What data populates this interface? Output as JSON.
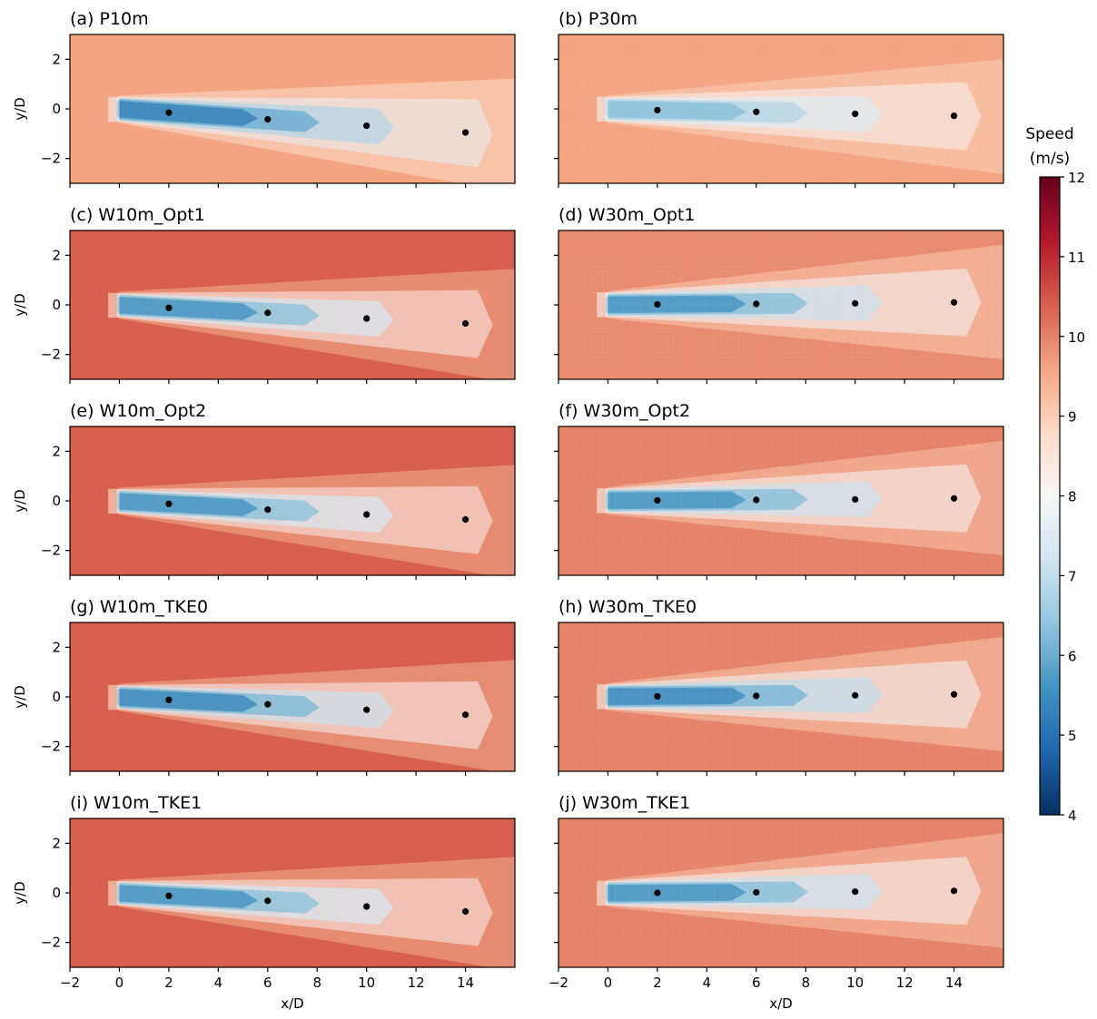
{
  "chart_data": {
    "type": "heatmap",
    "xlabel": "x/D",
    "ylabel": "y/D",
    "xlim": [
      -2,
      16
    ],
    "ylim": [
      -3,
      3
    ],
    "xticks": [
      -2,
      0,
      2,
      4,
      6,
      8,
      10,
      12,
      14
    ],
    "yticks": [
      -2,
      0,
      2
    ],
    "colorbar": {
      "title_line1": "Speed",
      "title_line2": "(m/s)",
      "min": 4,
      "max": 12,
      "ticks": [
        4,
        5,
        6,
        7,
        8,
        9,
        10,
        11,
        12
      ],
      "colormap": "RdBu_r",
      "stops": [
        "#053061",
        "#2166ac",
        "#4393c3",
        "#92c5de",
        "#d1e5f0",
        "#f7f7f7",
        "#fddbc7",
        "#f4a582",
        "#d6604d",
        "#b2182b",
        "#67001f"
      ]
    },
    "panels": [
      {
        "title": "(a) P10m",
        "background_speed": 9.6,
        "wake_min_speed": 5.3,
        "wake_deflection": "downward",
        "wake_centers": [
          {
            "x": 2,
            "y": -0.15
          },
          {
            "x": 6,
            "y": -0.42
          },
          {
            "x": 10,
            "y": -0.68
          },
          {
            "x": 14,
            "y": -0.95
          }
        ]
      },
      {
        "title": "(b) P30m",
        "background_speed": 9.6,
        "wake_min_speed": 6.3,
        "wake_deflection": "slight",
        "wake_centers": [
          {
            "x": 2,
            "y": -0.05
          },
          {
            "x": 6,
            "y": -0.12
          },
          {
            "x": 10,
            "y": -0.2
          },
          {
            "x": 14,
            "y": -0.28
          }
        ]
      },
      {
        "title": "(c) W10m_Opt1",
        "background_speed": 10.4,
        "wake_min_speed": 5.6,
        "wake_deflection": "downward",
        "wake_centers": [
          {
            "x": 2,
            "y": -0.12
          },
          {
            "x": 6,
            "y": -0.32
          },
          {
            "x": 10,
            "y": -0.55
          },
          {
            "x": 14,
            "y": -0.75
          }
        ]
      },
      {
        "title": "(d) W30m_Opt1",
        "background_speed": 9.9,
        "wake_min_speed": 5.6,
        "wake_deflection": "none",
        "wake_centers": [
          {
            "x": 2,
            "y": 0.02
          },
          {
            "x": 6,
            "y": 0.04
          },
          {
            "x": 10,
            "y": 0.06
          },
          {
            "x": 14,
            "y": 0.1
          }
        ]
      },
      {
        "title": "(e) W10m_Opt2",
        "background_speed": 10.4,
        "wake_min_speed": 5.6,
        "wake_deflection": "downward",
        "wake_centers": [
          {
            "x": 2,
            "y": -0.12
          },
          {
            "x": 6,
            "y": -0.35
          },
          {
            "x": 10,
            "y": -0.55
          },
          {
            "x": 14,
            "y": -0.75
          }
        ]
      },
      {
        "title": "(f) W30m_Opt2",
        "background_speed": 10.0,
        "wake_min_speed": 5.6,
        "wake_deflection": "none",
        "wake_centers": [
          {
            "x": 2,
            "y": 0.02
          },
          {
            "x": 6,
            "y": 0.04
          },
          {
            "x": 10,
            "y": 0.06
          },
          {
            "x": 14,
            "y": 0.1
          }
        ]
      },
      {
        "title": "(g) W10m_TKE0",
        "background_speed": 10.4,
        "wake_min_speed": 5.4,
        "wake_deflection": "downward",
        "wake_centers": [
          {
            "x": 2,
            "y": -0.12
          },
          {
            "x": 6,
            "y": -0.3
          },
          {
            "x": 10,
            "y": -0.52
          },
          {
            "x": 14,
            "y": -0.72
          }
        ]
      },
      {
        "title": "(h) W30m_TKE0",
        "background_speed": 10.0,
        "wake_min_speed": 5.4,
        "wake_deflection": "none",
        "wake_centers": [
          {
            "x": 2,
            "y": 0.02
          },
          {
            "x": 6,
            "y": 0.04
          },
          {
            "x": 10,
            "y": 0.06
          },
          {
            "x": 14,
            "y": 0.1
          }
        ]
      },
      {
        "title": "(i) W10m_TKE1",
        "background_speed": 10.4,
        "wake_min_speed": 5.6,
        "wake_deflection": "downward",
        "wake_centers": [
          {
            "x": 2,
            "y": -0.12
          },
          {
            "x": 6,
            "y": -0.32
          },
          {
            "x": 10,
            "y": -0.55
          },
          {
            "x": 14,
            "y": -0.75
          }
        ]
      },
      {
        "title": "(j) W30m_TKE1",
        "background_speed": 10.0,
        "wake_min_speed": 5.6,
        "wake_deflection": "none",
        "wake_centers": [
          {
            "x": 2,
            "y": 0.0
          },
          {
            "x": 6,
            "y": 0.02
          },
          {
            "x": 10,
            "y": 0.05
          },
          {
            "x": 14,
            "y": 0.08
          }
        ]
      }
    ]
  }
}
